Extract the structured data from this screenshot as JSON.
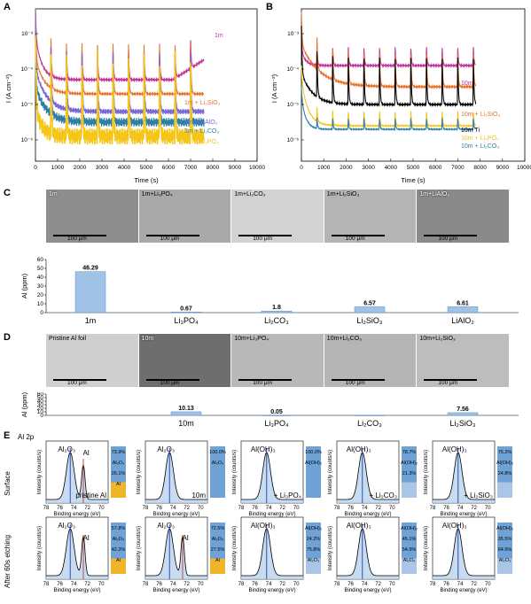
{
  "panels": {
    "A": {
      "letter": "A",
      "ylabel": "I (A cm⁻²)",
      "xlabel": "Time (s)",
      "yticks": [
        "10⁻⁶",
        "10⁻⁵",
        "10⁻⁴",
        "10⁻³"
      ],
      "xticks": [
        "0",
        "1000",
        "2000",
        "3000",
        "4000",
        "5000",
        "6000",
        "7000",
        "8000",
        "9000",
        "10000"
      ],
      "series": [
        {
          "name": "1m",
          "color": "#c0359a"
        },
        {
          "name": "1m + Li₂SiO₃",
          "color": "#e8712a"
        },
        {
          "name": "1m + LiAlO₂",
          "color": "#7b68d8"
        },
        {
          "name": "1m + Li₂CO₃",
          "color": "#2e7fa6"
        },
        {
          "name": "1m + Li₃PO₄",
          "color": "#f5c518"
        }
      ]
    },
    "B": {
      "letter": "B",
      "ylabel": "I (A cm⁻²)",
      "xlabel": "Time (s)",
      "yticks": [
        "10⁻⁶",
        "10⁻⁵",
        "10⁻⁴",
        "10⁻³"
      ],
      "xticks": [
        "0",
        "1000",
        "2000",
        "3000",
        "4000",
        "5000",
        "6000",
        "7000",
        "8000",
        "9000",
        "10000"
      ],
      "series": [
        {
          "name": "10m",
          "color": "#c0359a"
        },
        {
          "name": "10m + Li₂SiO₃",
          "color": "#e8712a"
        },
        {
          "name": "10m Ti",
          "color": "#000000"
        },
        {
          "name": "10m + Li₃PO₄",
          "color": "#f5c518"
        },
        {
          "name": "10m + Li₂CO₃",
          "color": "#2e7fa6"
        }
      ]
    },
    "C": {
      "letter": "C",
      "images": [
        "1m",
        "1m+Li₃PO₄",
        "1m+Li₂CO₃",
        "1m+Li₂SiO₃",
        "1m+LiAlO₂"
      ],
      "scalebar": "100 μm",
      "ylabel": "Al (ppm)",
      "yticks": [
        "0",
        "10",
        "20",
        "30",
        "40",
        "50",
        "60"
      ],
      "categories": [
        "1m",
        "Li₃PO₄",
        "Li₂CO₃",
        "Li₂SiO₃",
        "LiAlO₂"
      ],
      "value_labels": [
        "46.29",
        "0.67",
        "1.8",
        "6.57",
        "6.61"
      ]
    },
    "D": {
      "letter": "D",
      "images": [
        "Pristine Al foil",
        "10m",
        "10m+Li₃PO₄",
        "10m+Li₂CO₃",
        "10m+Li₂SiO₃"
      ],
      "scalebar": "100 μm",
      "ylabel": "Al (ppm)",
      "yticks": [
        "0",
        "10",
        "20",
        "30",
        "40",
        "50",
        "60"
      ],
      "categories": [
        "10m",
        "Li₃PO₄",
        "Li₂CO₃",
        "Li₂SiO₃"
      ],
      "value_labels": [
        "10.13",
        "0.05",
        "",
        "7.56"
      ]
    },
    "E": {
      "letter": "E",
      "title": "Al 2p",
      "row_labels": [
        "Surface",
        "After 60s etching"
      ],
      "xlabel": "Binding energy (eV)",
      "ylabel": "Intensity (counts/s)",
      "xticks": [
        "78",
        "76",
        "74",
        "72",
        "70"
      ],
      "cells": [
        {
          "peaks": [
            "Al₂O₃",
            "Al"
          ],
          "bar": [
            "73.9%",
            "Al₂O₃",
            "26.1%",
            "Al"
          ],
          "caption": "pristine Al"
        },
        {
          "peaks": [
            "Al₂O₃"
          ],
          "bar": [
            "100.0%",
            "Al₂O₃"
          ],
          "caption": "10m"
        },
        {
          "peaks": [
            "Al(OH)₃"
          ],
          "bar": [
            "100.0%",
            "Al(OH)₃"
          ],
          "caption": "+ Li₃PO₄"
        },
        {
          "peaks": [
            "Al(OH)₃"
          ],
          "bar": [
            "78.7%",
            "Al(OH)₃",
            "21.3%"
          ],
          "caption": "+ Li₂CO₃"
        },
        {
          "peaks": [
            "Al(OH)₃"
          ],
          "bar": [
            "75.2%",
            "Al(OH)₃",
            "24.8%"
          ],
          "caption": "+ Li₂SiO₃"
        },
        {
          "peaks": [
            "Al₂O₃",
            "Al"
          ],
          "bar": [
            "57.8%",
            "Al₂O₃",
            "42.2%",
            "Al"
          ],
          "caption": ""
        },
        {
          "peaks": [
            "Al₂O₃",
            "Al"
          ],
          "bar": [
            "72.5%",
            "Al₂O₃",
            "27.5%",
            "Al"
          ],
          "caption": ""
        },
        {
          "peaks": [
            "Al(OH)₃"
          ],
          "bar": [
            "Al(OH)₃",
            "24.2%",
            "75.8%",
            "Al₂O₃"
          ],
          "caption": ""
        },
        {
          "peaks": [
            "Al(OH)₃"
          ],
          "bar": [
            "Al(OH)₃",
            "45.1%",
            "54.9%",
            "Al₂O₃"
          ],
          "caption": ""
        },
        {
          "peaks": [
            "Al(OH)₃"
          ],
          "bar": [
            "Al(OH)₃",
            "35.5%",
            "64.5%",
            "Al₂O₃"
          ],
          "caption": ""
        }
      ]
    }
  },
  "chart_data": [
    {
      "type": "bar",
      "categories": [
        "1m",
        "Li₃PO₄",
        "Li₂CO₃",
        "Li₂SiO₃",
        "LiAlO₂"
      ],
      "values": [
        46.29,
        0.67,
        1.8,
        6.57,
        6.61
      ],
      "ylabel": "Al (ppm)",
      "ylim": [
        0,
        60
      ]
    },
    {
      "type": "bar",
      "categories": [
        "10m",
        "Li₃PO₄",
        "Li₂CO₃",
        "Li₂SiO₃"
      ],
      "values": [
        10.13,
        0.05,
        0,
        7.56
      ],
      "ylabel": "Al (ppm)",
      "ylim": [
        0,
        60
      ]
    }
  ]
}
